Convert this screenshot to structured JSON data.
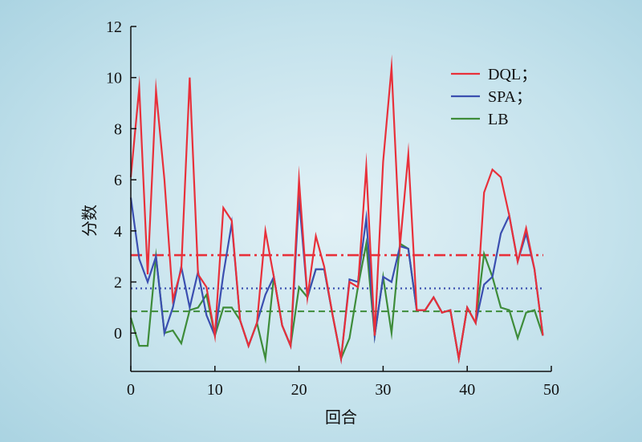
{
  "chart_data": {
    "type": "line",
    "title": "",
    "xlabel": "回合",
    "ylabel": "分数",
    "xlim": [
      0,
      50
    ],
    "ylim": [
      -1.5,
      12
    ],
    "xticks": [
      0,
      10,
      20,
      30,
      40,
      50
    ],
    "yticks": [
      0,
      2,
      4,
      6,
      8,
      10,
      12
    ],
    "grid": false,
    "legend_position": "top-right",
    "x": [
      0,
      1,
      2,
      3,
      4,
      5,
      6,
      7,
      8,
      9,
      10,
      11,
      12,
      13,
      14,
      15,
      16,
      17,
      18,
      19,
      20,
      21,
      22,
      23,
      24,
      25,
      26,
      27,
      28,
      29,
      30,
      31,
      32,
      33,
      34,
      35,
      36,
      37,
      38,
      39,
      40,
      41,
      42,
      43,
      44,
      45,
      46,
      47,
      48,
      49
    ],
    "series": [
      {
        "name": "DQL；",
        "color": "#e8303a",
        "values": [
          6.1,
          9.6,
          2.3,
          9.5,
          6.0,
          1.3,
          2.5,
          10.0,
          2.3,
          1.8,
          -0.1,
          4.9,
          4.4,
          0.5,
          -0.5,
          0.4,
          4.0,
          2.2,
          0.3,
          -0.5,
          6.0,
          1.4,
          3.8,
          2.6,
          0.7,
          -1.0,
          2.0,
          1.8,
          6.5,
          -0.1,
          6.7,
          10.4,
          3.4,
          7.0,
          0.9,
          0.9,
          1.4,
          0.8,
          0.9,
          -1.0,
          1.0,
          0.4,
          5.5,
          6.4,
          6.1,
          4.6,
          2.8,
          4.1,
          2.5,
          -0.1
        ],
        "mean": 3.05,
        "mean_label": ""
      },
      {
        "name": "SPA；",
        "color": "#3b4fb0",
        "values": [
          5.3,
          2.9,
          2.0,
          3.0,
          0.0,
          1.0,
          2.6,
          1.0,
          2.4,
          0.7,
          -0.1,
          2.3,
          4.3,
          0.5,
          -0.5,
          0.4,
          1.5,
          2.2,
          0.3,
          -0.5,
          5.3,
          1.4,
          2.5,
          2.5,
          0.7,
          -1.0,
          2.1,
          2.0,
          4.5,
          -0.1,
          2.2,
          2.0,
          3.4,
          3.3,
          0.9,
          0.9,
          1.4,
          0.8,
          0.9,
          -1.0,
          1.0,
          0.4,
          1.9,
          2.2,
          3.9,
          4.6,
          2.8,
          3.9,
          2.5,
          -0.1
        ],
        "mean": 1.75,
        "mean_label": ""
      },
      {
        "name": "LB",
        "color": "#3e8c3a",
        "values": [
          0.6,
          -0.5,
          -0.5,
          3.0,
          0.0,
          0.1,
          -0.4,
          0.9,
          1.0,
          1.5,
          -0.1,
          1.0,
          1.0,
          0.5,
          -0.5,
          0.4,
          -1.0,
          2.2,
          0.3,
          -0.5,
          1.8,
          1.4,
          2.5,
          2.5,
          0.7,
          -1.0,
          -0.2,
          1.8,
          3.5,
          -0.1,
          2.2,
          0.0,
          3.5,
          3.3,
          0.9,
          0.9,
          1.4,
          0.8,
          0.9,
          -1.0,
          1.0,
          0.4,
          3.1,
          2.2,
          1.0,
          0.9,
          -0.2,
          0.8,
          0.9,
          -0.1
        ],
        "mean": 0.85,
        "mean_label": ""
      }
    ]
  }
}
